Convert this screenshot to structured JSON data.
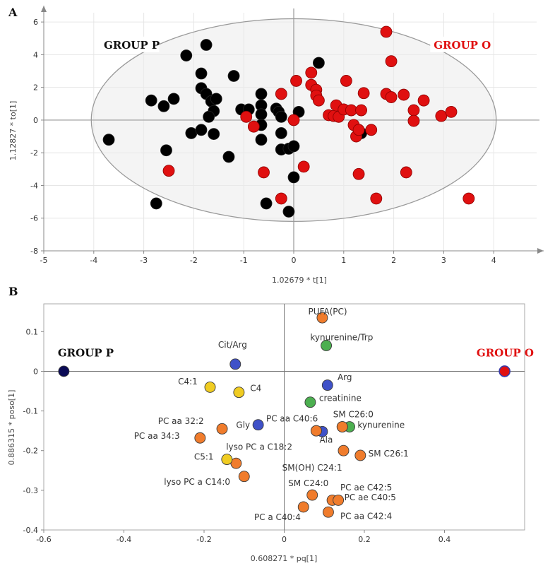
{
  "chart_data": [
    {
      "panel": "A",
      "type": "scatter",
      "xlabel": "1.02679 * t[1]",
      "ylabel": "1.12827 * to[1]",
      "xlim": [
        -5,
        5
      ],
      "ylim": [
        -8,
        7
      ],
      "xticks": [
        "-5",
        "-4",
        "-3",
        "-2",
        "-1",
        "0",
        "1",
        "2",
        "3",
        "4"
      ],
      "yticks": [
        "6",
        "4",
        "2",
        "0",
        "-2",
        "-4",
        "-6",
        "-8"
      ],
      "ellipse": {
        "cx": 0,
        "cy": 0,
        "rx": 4.05,
        "ry": 6.2
      },
      "labels": [
        {
          "text": "GROUP P",
          "x": -3.8,
          "y": 4.5,
          "color": "#111111"
        },
        {
          "text": "GROUP O",
          "x": 2.8,
          "y": 4.5,
          "color": "#e01010"
        }
      ],
      "series": [
        {
          "color": "#000000",
          "points": [
            [
              -3.7,
              -1.2
            ],
            [
              -2.85,
              1.2
            ],
            [
              -2.6,
              0.85
            ],
            [
              -2.4,
              1.3
            ],
            [
              -2.55,
              -1.85
            ],
            [
              -2.75,
              -5.1
            ],
            [
              -2.15,
              3.95
            ],
            [
              -2.05,
              -0.8
            ],
            [
              -1.75,
              4.6
            ],
            [
              -1.85,
              2.85
            ],
            [
              -1.85,
              1.95
            ],
            [
              -1.75,
              1.6
            ],
            [
              -1.65,
              1.15
            ],
            [
              -1.55,
              1.3
            ],
            [
              -1.6,
              0.55
            ],
            [
              -1.85,
              -0.6
            ],
            [
              -1.7,
              0.2
            ],
            [
              -1.6,
              -0.85
            ],
            [
              -1.3,
              -2.25
            ],
            [
              -1.2,
              2.7
            ],
            [
              -1.05,
              0.65
            ],
            [
              -0.9,
              0.65
            ],
            [
              -0.65,
              1.6
            ],
            [
              -0.65,
              0.9
            ],
            [
              -0.65,
              0.35
            ],
            [
              -0.65,
              -0.3
            ],
            [
              -0.65,
              -1.2
            ],
            [
              -0.35,
              0.7
            ],
            [
              -0.3,
              0.5
            ],
            [
              -0.25,
              0.2
            ],
            [
              -0.25,
              -0.8
            ],
            [
              -0.25,
              -1.8
            ],
            [
              -0.1,
              -1.75
            ],
            [
              0.0,
              -1.6
            ],
            [
              0.1,
              0.5
            ],
            [
              0.5,
              3.5
            ],
            [
              -0.55,
              -5.1
            ],
            [
              -0.1,
              -5.6
            ],
            [
              0.0,
              -3.5
            ],
            [
              1.35,
              -0.8
            ]
          ]
        },
        {
          "color": "#e01010",
          "points": [
            [
              -2.5,
              -3.1
            ],
            [
              -0.95,
              0.2
            ],
            [
              -0.8,
              -0.4
            ],
            [
              -0.6,
              -3.2
            ],
            [
              -0.25,
              1.6
            ],
            [
              -0.25,
              -4.8
            ],
            [
              0.0,
              0.0
            ],
            [
              0.05,
              2.4
            ],
            [
              0.2,
              -2.85
            ],
            [
              0.35,
              2.9
            ],
            [
              0.35,
              2.15
            ],
            [
              0.45,
              1.85
            ],
            [
              0.45,
              1.5
            ],
            [
              0.5,
              1.2
            ],
            [
              0.7,
              0.3
            ],
            [
              0.8,
              0.25
            ],
            [
              0.85,
              0.9
            ],
            [
              0.9,
              0.2
            ],
            [
              1.0,
              0.65
            ],
            [
              1.05,
              2.4
            ],
            [
              1.15,
              0.6
            ],
            [
              1.2,
              -0.3
            ],
            [
              1.25,
              -1.0
            ],
            [
              1.3,
              -0.6
            ],
            [
              1.3,
              -3.3
            ],
            [
              1.35,
              0.6
            ],
            [
              1.4,
              1.65
            ],
            [
              1.55,
              -0.6
            ],
            [
              1.65,
              -4.8
            ],
            [
              1.85,
              5.4
            ],
            [
              1.85,
              1.6
            ],
            [
              1.95,
              3.6
            ],
            [
              1.95,
              1.4
            ],
            [
              2.2,
              1.55
            ],
            [
              2.25,
              -3.2
            ],
            [
              2.4,
              0.6
            ],
            [
              2.4,
              -0.05
            ],
            [
              2.6,
              1.2
            ],
            [
              2.95,
              0.25
            ],
            [
              3.15,
              0.5
            ],
            [
              3.5,
              -4.8
            ]
          ]
        }
      ]
    },
    {
      "panel": "B",
      "type": "scatter",
      "xlabel": "0.608271 * pq[1]",
      "ylabel": "0.886315 * poso[1]",
      "xlim": [
        -0.6,
        0.6
      ],
      "ylim": [
        -0.4,
        0.17
      ],
      "xticks": [
        "-0.6",
        "-0.4",
        "-0.2",
        "0",
        "0.2",
        "0.4"
      ],
      "yticks": [
        "0.1",
        "0",
        "-0.1",
        "-0.2",
        "-0.3",
        "-0.4"
      ],
      "labels": [
        {
          "text": "GROUP P",
          "x": -0.565,
          "y": 0.012,
          "color": "#111111"
        },
        {
          "text": "GROUP O",
          "x": 0.48,
          "y": 0.012,
          "color": "#e01010"
        }
      ],
      "points": [
        {
          "x": -0.55,
          "y": 0.0,
          "fill": "#0a0a55",
          "label": "",
          "lx": 0,
          "ly": 0
        },
        {
          "x": 0.55,
          "y": 0.0,
          "fill": "#e01010",
          "ring": "#3a3aa8",
          "label": "",
          "lx": 0,
          "ly": 0
        },
        {
          "x": 0.095,
          "y": 0.135,
          "fill": "#f07c2c",
          "label": "PUFA(PC)",
          "lx": 0.06,
          "ly": 0.143
        },
        {
          "x": 0.105,
          "y": 0.065,
          "fill": "#4caf50",
          "label": "kynurenine/Trp",
          "lx": 0.065,
          "ly": 0.078
        },
        {
          "x": -0.122,
          "y": 0.018,
          "fill": "#3f51c8",
          "label": "Cit/Arg",
          "lx": -0.165,
          "ly": 0.06
        },
        {
          "x": 0.108,
          "y": -0.035,
          "fill": "#3f51c8",
          "label": "Arg",
          "lx": 0.133,
          "ly": -0.022
        },
        {
          "x": -0.185,
          "y": -0.04,
          "fill": "#f0cc22",
          "label": "C4:1",
          "lx": -0.265,
          "ly": -0.033
        },
        {
          "x": -0.113,
          "y": -0.053,
          "fill": "#f0cc22",
          "label": "C4",
          "lx": -0.085,
          "ly": -0.05
        },
        {
          "x": 0.065,
          "y": -0.078,
          "fill": "#4caf50",
          "label": "creatinine",
          "lx": 0.087,
          "ly": -0.075
        },
        {
          "x": 0.163,
          "y": -0.14,
          "fill": "#4caf50",
          "label": "",
          "lx": 0,
          "ly": 0
        },
        {
          "x": 0.145,
          "y": -0.14,
          "fill": "#f07c2c",
          "label": "kynurenine",
          "lx": 0.183,
          "ly": -0.143
        },
        {
          "x": 0.145,
          "y": -0.14,
          "fill": "#f07c2c",
          "label": "SM C26:0",
          "lx": 0.122,
          "ly": -0.116
        },
        {
          "x": -0.065,
          "y": -0.135,
          "fill": "#3f51c8",
          "label": "Gly",
          "lx": -0.12,
          "ly": -0.143
        },
        {
          "x": -0.155,
          "y": -0.145,
          "fill": "#f07c2c",
          "label": "PC aa 32:2",
          "lx": -0.315,
          "ly": -0.133
        },
        {
          "x": -0.21,
          "y": -0.168,
          "fill": "#f07c2c",
          "label": "PC aa 34:3",
          "lx": -0.375,
          "ly": -0.17
        },
        {
          "x": 0.095,
          "y": -0.152,
          "fill": "#3f51c8",
          "label": "",
          "lx": 0,
          "ly": 0
        },
        {
          "x": 0.08,
          "y": -0.15,
          "fill": "#f07c2c",
          "label": "PC aa C40:6",
          "lx": -0.045,
          "ly": -0.127
        },
        {
          "x": 0.08,
          "y": -0.15,
          "fill": "#f07c2c",
          "label": "Ala",
          "lx": 0.088,
          "ly": -0.18
        },
        {
          "x": -0.12,
          "y": -0.232,
          "fill": "#f07c2c",
          "label": "lyso PC a C18:2",
          "lx": -0.145,
          "ly": -0.198
        },
        {
          "x": -0.143,
          "y": -0.222,
          "fill": "#f0cc22",
          "label": "C5:1",
          "lx": -0.225,
          "ly": -0.223
        },
        {
          "x": 0.148,
          "y": -0.2,
          "fill": "#f07c2c",
          "label": "SM(OH) C24:1",
          "lx": -0.005,
          "ly": -0.25
        },
        {
          "x": 0.19,
          "y": -0.212,
          "fill": "#f07c2c",
          "label": "SM C26:1",
          "lx": 0.21,
          "ly": -0.215
        },
        {
          "x": -0.1,
          "y": -0.265,
          "fill": "#f07c2c",
          "label": "lyso PC a C14:0",
          "lx": -0.3,
          "ly": -0.286
        },
        {
          "x": 0.07,
          "y": -0.312,
          "fill": "#f07c2c",
          "label": "SM C24:0",
          "lx": 0.01,
          "ly": -0.29
        },
        {
          "x": 0.12,
          "y": -0.325,
          "fill": "#f07c2c",
          "label": "PC ae C42:5",
          "lx": 0.14,
          "ly": -0.3
        },
        {
          "x": 0.135,
          "y": -0.325,
          "fill": "#f07c2c",
          "label": "PC ae C40:5",
          "lx": 0.15,
          "ly": -0.325
        },
        {
          "x": 0.048,
          "y": -0.342,
          "fill": "#f07c2c",
          "label": "PC a C40:4",
          "lx": -0.075,
          "ly": -0.375
        },
        {
          "x": 0.11,
          "y": -0.355,
          "fill": "#f07c2c",
          "label": "PC aa C42:4",
          "lx": 0.14,
          "ly": -0.372
        }
      ]
    }
  ]
}
